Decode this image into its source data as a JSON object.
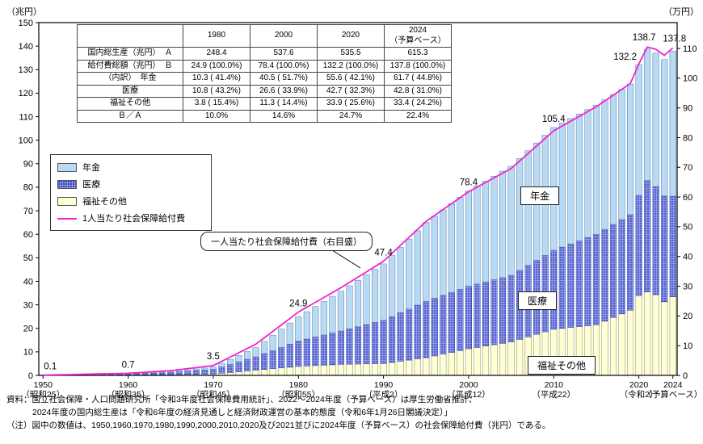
{
  "units": {
    "left": "（兆円）",
    "right": "（万円）"
  },
  "table": {
    "col_headers": [
      {
        "label": ""
      },
      {
        "label": "1980"
      },
      {
        "label": "2000"
      },
      {
        "label": "2020"
      },
      {
        "label": "2024",
        "sub": "（予算ベース）"
      }
    ],
    "rows": [
      {
        "label": "国内総生産（兆円）　Ａ",
        "values": [
          "248.4",
          "537.6",
          "535.5",
          "615.3"
        ]
      },
      {
        "label": "給付費総額（兆円）　Ｂ",
        "values": [
          "24.9 (100.0%)",
          "78.4 (100.0%)",
          "132.2 (100.0%)",
          "137.8 (100.0%)"
        ]
      },
      {
        "label": "（内訳）　年金",
        "values": [
          "10.3 ( 41.4%)",
          "40.5 ( 51.7%)",
          "55.6 ( 42.1%)",
          "61.7 ( 44.8%)"
        ]
      },
      {
        "label": "医療",
        "values": [
          "10.8 ( 43.2%)",
          "26.6 ( 33.9%)",
          "42.7 ( 32.3%)",
          "42.8 ( 31.0%)"
        ]
      },
      {
        "label": "福祉その他",
        "values": [
          "3.8 ( 15.4%)",
          "11.3 ( 14.4%)",
          "33.9 ( 25.6%)",
          "33.4 ( 24.2%)"
        ]
      },
      {
        "label": "Ｂ／Ａ",
        "values": [
          "10.0%",
          "14.6%",
          "24.7%",
          "22.4%"
        ]
      }
    ]
  },
  "legend": [
    {
      "label": "年金",
      "swatch": "pension"
    },
    {
      "label": "医療",
      "swatch": "medical"
    },
    {
      "label": "福祉その他",
      "swatch": "welfare"
    },
    {
      "label": "1人当たり社会保障給付費",
      "swatch": "line"
    }
  ],
  "region_labels": {
    "pension": "年金",
    "medical": "医療",
    "welfare": "福祉その他"
  },
  "callout": {
    "text": "一人当たり社会保障給付費（右目盛）"
  },
  "footer": {
    "line1": "資料：国立社会保障・人口問題研究所「令和3年度社会保障費用統計」、2022～2024年度（予算ベース）は厚生労働省推計、",
    "line2": "2024年度の国内総生産は「令和6年度の経済見通しと経済財政運営の基本的態度（令和6年1月26日閣議決定）」",
    "line3": "（注）図中の数値は、1950,1960,1970,1980,1990,2000,2010,2020及び2021並びに2024年度（予算ベース）の社会保障給付費（兆円）である。"
  },
  "colors": {
    "pension_fill": "#b9daf2",
    "pension_stroke": "#4a7dae",
    "medical_base": "#8e99e8",
    "medical_dot": "#1f2fae",
    "medical_stroke": "#3344aa",
    "welfare_fill": "#ffffd6",
    "welfare_stroke": "#8a8a3a",
    "line": "#f222cc",
    "frame": "#000000"
  },
  "chart_data": {
    "type": "bar",
    "subtype": "stacked-bars-with-line",
    "years": [
      1950,
      1951,
      1952,
      1953,
      1954,
      1955,
      1956,
      1957,
      1958,
      1959,
      1960,
      1961,
      1962,
      1963,
      1964,
      1965,
      1966,
      1967,
      1968,
      1969,
      1970,
      1971,
      1972,
      1973,
      1974,
      1975,
      1976,
      1977,
      1978,
      1979,
      1980,
      1981,
      1982,
      1983,
      1984,
      1985,
      1986,
      1987,
      1988,
      1989,
      1990,
      1991,
      1992,
      1993,
      1994,
      1995,
      1996,
      1997,
      1998,
      1999,
      2000,
      2001,
      2002,
      2003,
      2004,
      2005,
      2006,
      2007,
      2008,
      2009,
      2010,
      2011,
      2012,
      2013,
      2014,
      2015,
      2016,
      2017,
      2018,
      2019,
      2020,
      2021,
      2022,
      2023,
      2024
    ],
    "series": [
      {
        "name": "福祉その他",
        "stack_order": 0,
        "values": [
          0.03,
          0.04,
          0.06,
          0.07,
          0.09,
          0.1,
          0.11,
          0.13,
          0.14,
          0.16,
          0.17,
          0.2,
          0.23,
          0.27,
          0.3,
          0.33,
          0.38,
          0.43,
          0.48,
          0.53,
          0.58,
          0.9,
          1.23,
          1.55,
          1.88,
          2.2,
          2.52,
          2.84,
          3.16,
          3.48,
          3.8,
          3.98,
          4.16,
          4.34,
          4.52,
          4.7,
          4.76,
          4.82,
          4.88,
          4.94,
          5.0,
          5.5,
          6.0,
          6.5,
          7.0,
          7.5,
          8.26,
          9.02,
          9.78,
          10.54,
          11.3,
          11.88,
          12.46,
          13.04,
          13.62,
          14.2,
          15.28,
          16.36,
          17.44,
          18.52,
          19.6,
          19.98,
          20.36,
          20.74,
          21.12,
          21.5,
          23.05,
          24.6,
          26.15,
          27.7,
          33.9,
          35.5,
          34.3,
          31.3,
          33.4
        ]
      },
      {
        "name": "医療",
        "stack_order": 1,
        "values": [
          0.05,
          0.09,
          0.12,
          0.16,
          0.19,
          0.23,
          0.27,
          0.3,
          0.34,
          0.37,
          0.41,
          0.51,
          0.61,
          0.72,
          0.82,
          0.92,
          1.15,
          1.38,
          1.61,
          1.84,
          2.07,
          2.8,
          3.52,
          4.25,
          4.97,
          5.7,
          6.72,
          7.74,
          8.76,
          9.78,
          10.8,
          11.48,
          12.16,
          12.84,
          13.52,
          14.2,
          15.04,
          15.88,
          16.72,
          17.56,
          18.4,
          19.52,
          20.64,
          21.76,
          22.88,
          24.0,
          24.52,
          25.04,
          25.56,
          26.08,
          26.6,
          26.96,
          27.32,
          27.68,
          28.04,
          28.4,
          29.44,
          30.48,
          31.52,
          32.56,
          33.6,
          34.58,
          35.56,
          36.54,
          37.52,
          38.5,
          39.05,
          39.6,
          40.15,
          40.7,
          42.7,
          47.4,
          46.0,
          45.0,
          42.8
        ]
      },
      {
        "name": "年金",
        "stack_order": 2,
        "values": [
          0.02,
          0.03,
          0.04,
          0.04,
          0.05,
          0.06,
          0.07,
          0.08,
          0.1,
          0.11,
          0.12,
          0.17,
          0.21,
          0.26,
          0.3,
          0.35,
          0.45,
          0.55,
          0.65,
          0.75,
          0.85,
          1.46,
          2.07,
          2.68,
          3.29,
          3.9,
          5.18,
          6.46,
          7.74,
          9.02,
          10.3,
          11.62,
          12.94,
          14.26,
          15.58,
          16.9,
          18.32,
          19.74,
          21.16,
          22.58,
          24.0,
          25.9,
          27.8,
          29.7,
          31.6,
          33.5,
          34.9,
          36.3,
          37.7,
          39.1,
          40.5,
          41.66,
          42.82,
          43.98,
          45.14,
          46.3,
          47.48,
          48.66,
          49.84,
          51.02,
          52.2,
          52.74,
          53.28,
          53.82,
          54.36,
          54.9,
          55.05,
          55.2,
          55.35,
          55.5,
          55.6,
          55.8,
          56.7,
          58.0,
          61.7
        ]
      }
    ],
    "line": {
      "name": "1人当たり社会保障給付費",
      "axis": "right",
      "values": [
        0.1,
        0.16,
        0.22,
        0.28,
        0.34,
        0.4,
        0.46,
        0.52,
        0.58,
        0.64,
        0.7,
        0.88,
        1.06,
        1.24,
        1.42,
        1.6,
        1.94,
        2.28,
        2.62,
        2.96,
        3.3,
        4.74,
        6.18,
        7.62,
        9.06,
        10.5,
        12.66,
        14.82,
        16.98,
        19.14,
        21.3,
        22.94,
        24.58,
        26.22,
        27.86,
        29.5,
        31.28,
        33.06,
        34.84,
        36.62,
        38.4,
        41.08,
        43.76,
        46.44,
        49.12,
        51.8,
        53.8,
        55.8,
        57.8,
        59.8,
        61.8,
        63.36,
        64.92,
        66.48,
        68.04,
        69.6,
        72.14,
        74.68,
        77.22,
        79.76,
        82.3,
        83.92,
        85.54,
        87.16,
        88.78,
        90.4,
        92.35,
        94.3,
        96.25,
        98.2,
        104.8,
        110.5,
        109.7,
        107.7,
        110.2
      ]
    },
    "left_axis": {
      "label": "（兆円）",
      "min": 0,
      "max": 150,
      "step": 10
    },
    "right_axis": {
      "label": "（万円）",
      "min": 0,
      "max": 110,
      "step": 10
    },
    "grid": false,
    "legend_position": "upper-left",
    "annotations": [
      {
        "year": 1950,
        "value": 0.1
      },
      {
        "year": 1960,
        "value": 0.7
      },
      {
        "year": 1970,
        "value": 3.5
      },
      {
        "year": 1980,
        "value": 24.9
      },
      {
        "year": 1990,
        "value": 47.4
      },
      {
        "year": 2000,
        "value": 78.4
      },
      {
        "year": 2010,
        "value": 105.4
      },
      {
        "year": 2020,
        "value": 132.2
      },
      {
        "year": 2021,
        "value": 138.7
      },
      {
        "year": 2024,
        "value": 137.8
      }
    ],
    "x_ticks": [
      {
        "year": 1950,
        "label": "1950",
        "sub": "（昭和25）"
      },
      {
        "year": 1960,
        "label": "1960",
        "sub": "（昭和35）"
      },
      {
        "year": 1970,
        "label": "1970",
        "sub": "（昭和45）"
      },
      {
        "year": 1980,
        "label": "1980",
        "sub": "（昭和55）"
      },
      {
        "year": 1990,
        "label": "1990",
        "sub": "（平成2）"
      },
      {
        "year": 2000,
        "label": "2000",
        "sub": "（平成12）"
      },
      {
        "year": 2010,
        "label": "2010",
        "sub": "（平成22）"
      },
      {
        "year": 2020,
        "label": "2020",
        "sub": "（令和2）"
      },
      {
        "year": 2024,
        "label": "2024",
        "sub": "（予算ベース）"
      }
    ]
  }
}
